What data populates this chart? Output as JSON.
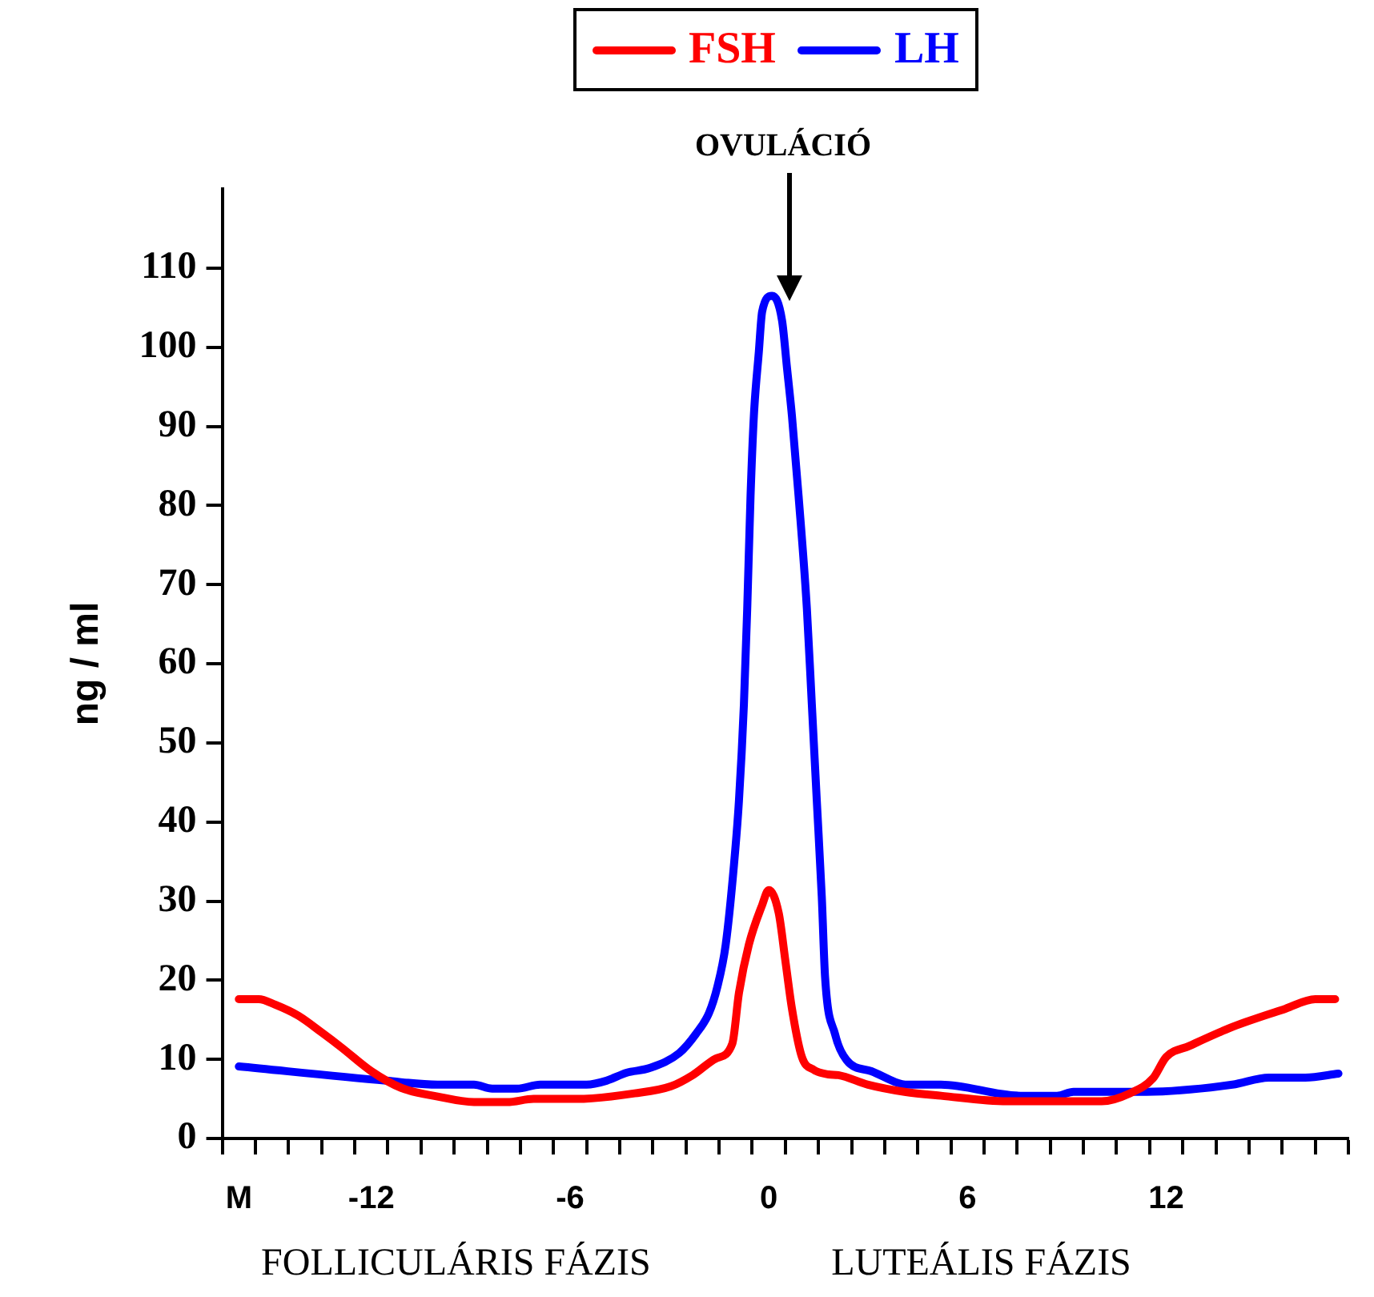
{
  "chart_data": {
    "type": "line",
    "ylabel": "ng / ml",
    "legend": "top",
    "grid": false,
    "marker": "none",
    "line_style": "solid",
    "xlim": [
      -16.5,
      17.5
    ],
    "ylim": [
      0,
      120
    ],
    "yticks": [
      0,
      10,
      20,
      30,
      40,
      50,
      60,
      70,
      80,
      90,
      100,
      110
    ],
    "xticks": [
      {
        "value": -16,
        "label": "M"
      },
      {
        "value": -12,
        "label": "-12"
      },
      {
        "value": -6,
        "label": "-6"
      },
      {
        "value": 0,
        "label": "0"
      },
      {
        "value": 6,
        "label": "6"
      },
      {
        "value": 12,
        "label": "12"
      },
      {
        "value": -16.5,
        "label": null
      },
      {
        "value": -15.5,
        "label": null
      },
      {
        "value": -14.5,
        "label": null
      },
      {
        "value": -13.5,
        "label": null
      },
      {
        "value": -12.5,
        "label": null
      },
      {
        "value": -11.5,
        "label": null
      },
      {
        "value": -10.5,
        "label": null
      },
      {
        "value": -9.5,
        "label": null
      },
      {
        "value": -8.5,
        "label": null
      },
      {
        "value": -7.5,
        "label": null
      },
      {
        "value": -6.5,
        "label": null
      },
      {
        "value": -5.5,
        "label": null
      },
      {
        "value": -4.5,
        "label": null
      },
      {
        "value": -3.5,
        "label": null
      },
      {
        "value": -2.5,
        "label": null
      },
      {
        "value": -1.5,
        "label": null
      },
      {
        "value": -0.5,
        "label": null
      },
      {
        "value": 0.5,
        "label": null
      },
      {
        "value": 1.5,
        "label": null
      },
      {
        "value": 2.5,
        "label": null
      },
      {
        "value": 3.5,
        "label": null
      },
      {
        "value": 4.5,
        "label": null
      },
      {
        "value": 5.5,
        "label": null
      },
      {
        "value": 6.5,
        "label": null
      },
      {
        "value": 7.5,
        "label": null
      },
      {
        "value": 8.5,
        "label": null
      },
      {
        "value": 9.5,
        "label": null
      },
      {
        "value": 10.5,
        "label": null
      },
      {
        "value": 11.5,
        "label": null
      },
      {
        "value": 12.5,
        "label": null
      },
      {
        "value": 13.5,
        "label": null
      },
      {
        "value": 14.5,
        "label": null
      },
      {
        "value": 15.5,
        "label": null
      },
      {
        "value": 16.5,
        "label": null
      },
      {
        "value": 17.5,
        "label": null
      }
    ],
    "annotations": [
      "OVULÁCIÓ",
      "FOLLICULÁRIS FÁZIS",
      "LUTEÁLIS FÁZIS"
    ],
    "series": [
      {
        "name": "FSH",
        "color": "#ff0000",
        "x": [
          -16,
          -15.4,
          -14.9,
          -14.2,
          -13.5,
          -12.9,
          -12,
          -11.1,
          -10,
          -8.9,
          -7.9,
          -7.1,
          -5.8,
          -4.05,
          -2.95,
          -2.3,
          -1.6,
          -1.1,
          -0.9,
          -0.6,
          -0.2,
          0,
          0.3,
          0.5,
          0.7,
          1,
          1.35,
          1.8,
          2.1,
          3,
          4.1,
          5.2,
          7.2,
          10.05,
          10.9,
          11.6,
          12,
          12.7,
          14,
          15.6,
          16.5,
          17.1
        ],
        "values": [
          17.6,
          17.6,
          16.9,
          15.5,
          13.4,
          11.5,
          8.5,
          6.4,
          5.3,
          4.6,
          4.6,
          5,
          5,
          5.7,
          6.6,
          8,
          10.1,
          12,
          18.4,
          24.5,
          29.5,
          31.4,
          28.5,
          22.5,
          16.4,
          10.3,
          8.7,
          8.1,
          8,
          6.8,
          5.9,
          5.4,
          4.7,
          4.7,
          5.7,
          7.6,
          10.3,
          11.7,
          14.1,
          16.4,
          17.6,
          17.6
        ]
      },
      {
        "name": "LH",
        "color": "#0000ff",
        "x": [
          -16,
          -11.55,
          -10,
          -8.9,
          -8.35,
          -7.6,
          -6.9,
          -5.5,
          -4.9,
          -4.3,
          -3.6,
          -2.7,
          -2.2,
          -1.8,
          -1.55,
          -1.3,
          -1.05,
          -0.9,
          -0.75,
          -0.65,
          -0.55,
          -0.45,
          -0.3,
          -0.2,
          0.1,
          0.4,
          0.55,
          0.7,
          0.9,
          1.15,
          1.3,
          1.45,
          1.6,
          1.7,
          2,
          2.35,
          3.1,
          4.2,
          5.2,
          7.6,
          8.7,
          9.2,
          11.4,
          14,
          15.1,
          16.2,
          17.2
        ],
        "values": [
          9.1,
          7.3,
          6.8,
          6.8,
          6.3,
          6.3,
          6.8,
          6.8,
          7.3,
          8.3,
          8.9,
          10.8,
          13.2,
          15.9,
          19.2,
          24.5,
          34.6,
          42.7,
          54.9,
          67,
          81.2,
          91.3,
          99.4,
          104.5,
          106.5,
          103.4,
          97.4,
          91.3,
          81.2,
          67,
          54.9,
          42.7,
          30.6,
          20.4,
          13.2,
          9.9,
          8.5,
          6.8,
          6.8,
          5.4,
          5.4,
          5.9,
          5.9,
          6.8,
          7.7,
          7.7,
          8.2
        ]
      }
    ]
  }
}
